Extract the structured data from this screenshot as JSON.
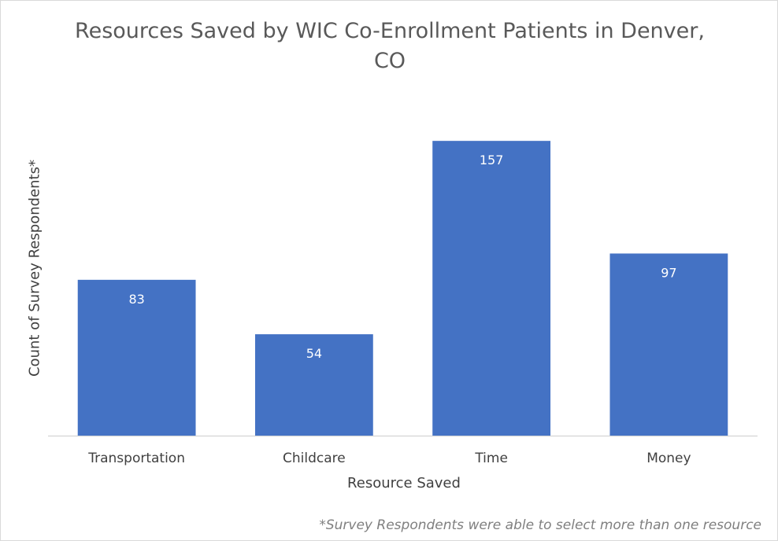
{
  "chart_data": {
    "type": "bar",
    "title": "Resources Saved by WIC Co-Enrollment Patients in Denver,\nCO",
    "xlabel": "Resource Saved",
    "ylabel": "Count of Survey Respondents*",
    "categories": [
      "Transportation",
      "Childcare",
      "Time",
      "Money"
    ],
    "values": [
      83,
      54,
      157,
      97
    ],
    "ylim": [
      0,
      160
    ],
    "grid": false,
    "legend": "none",
    "bar_color": "#4472C4",
    "footnote": "*Survey Respondents were able to select more than one resource"
  }
}
